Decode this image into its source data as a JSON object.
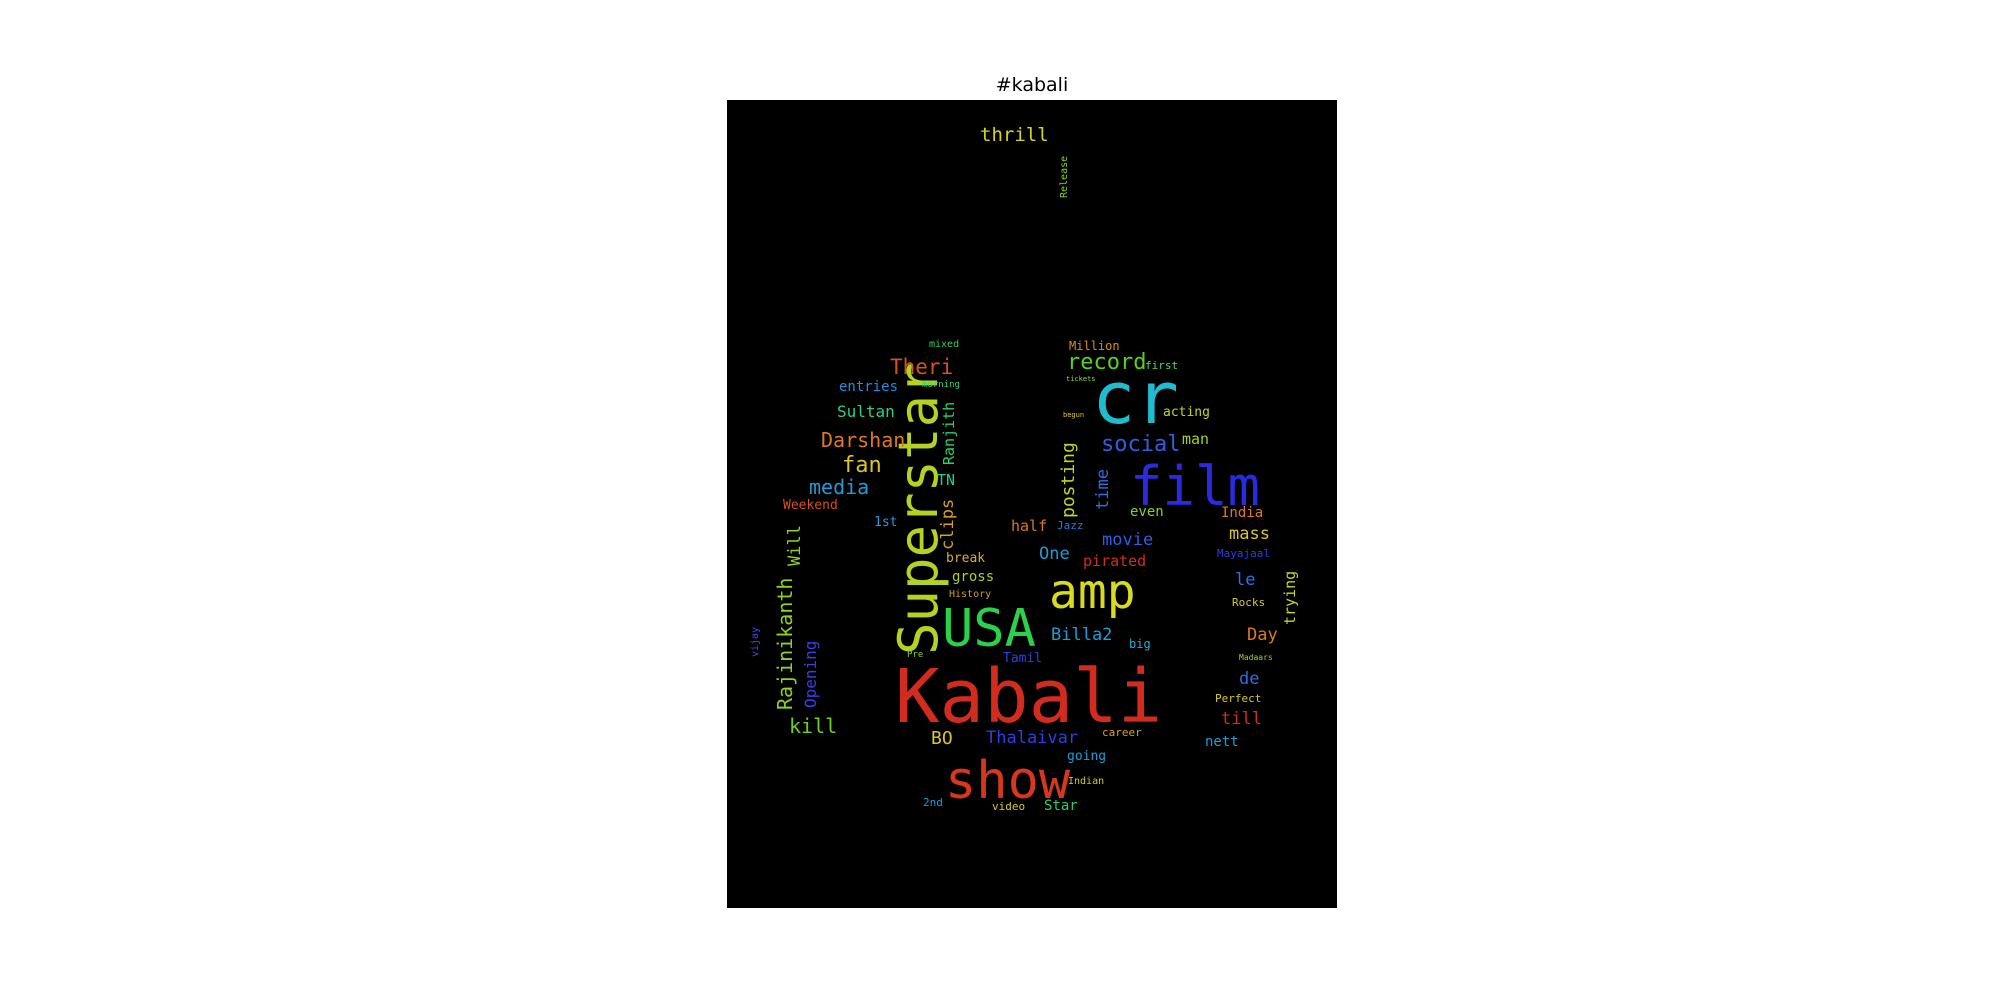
{
  "title": "#kabali",
  "words": [
    {
      "text": "Kabali",
      "color": "#d22c1f"
    },
    {
      "text": "show",
      "color": "#d7381c"
    },
    {
      "text": "Superstar",
      "color": "#b4d21f"
    },
    {
      "text": "cr",
      "color": "#1fbcd0"
    },
    {
      "text": "film",
      "color": "#2a2ae0"
    },
    {
      "text": "amp",
      "color": "#d8dc1f"
    },
    {
      "text": "USA",
      "color": "#2ad24c"
    },
    {
      "text": "record",
      "color": "#57d01f"
    },
    {
      "text": "social",
      "color": "#2e5ee6"
    },
    {
      "text": "thrill",
      "color": "#d6d21f"
    },
    {
      "text": "Theri",
      "color": "#d8501c"
    },
    {
      "text": "Darshan",
      "color": "#e0781f"
    },
    {
      "text": "media",
      "color": "#1f9cd8"
    },
    {
      "text": "fan",
      "color": "#d8c81f"
    },
    {
      "text": "Sultan",
      "color": "#2ad08a"
    },
    {
      "text": "entries",
      "color": "#1f8ee0"
    },
    {
      "text": "Rajinikanth",
      "color": "#8cd21f"
    },
    {
      "text": "Will",
      "color": "#8cd21f"
    },
    {
      "text": "Opening",
      "color": "#3a3ee6"
    },
    {
      "text": "kill",
      "color": "#6ad01f"
    },
    {
      "text": "Ranjith",
      "color": "#2ad06a"
    },
    {
      "text": "TN",
      "color": "#1fd090"
    },
    {
      "text": "clips",
      "color": "#d8a01f"
    },
    {
      "text": "posting",
      "color": "#c4d41f"
    },
    {
      "text": "time",
      "color": "#2e6ee6"
    },
    {
      "text": "man",
      "color": "#a0d21f"
    },
    {
      "text": "acting",
      "color": "#c8d41f"
    },
    {
      "text": "first",
      "color": "#5ad26a"
    },
    {
      "text": "Million",
      "color": "#e08a1f"
    },
    {
      "text": "mixed",
      "color": "#2ad06a"
    },
    {
      "text": "morning",
      "color": "#2ad07a"
    },
    {
      "text": "Weekend",
      "color": "#d8501c"
    },
    {
      "text": "1st",
      "color": "#1f9cd8"
    },
    {
      "text": "half",
      "color": "#d8781f"
    },
    {
      "text": "Jazz",
      "color": "#1f7ee0"
    },
    {
      "text": "One",
      "color": "#1f9cd8"
    },
    {
      "text": "movie",
      "color": "#2e5ee6"
    },
    {
      "text": "pirated",
      "color": "#d22c1f"
    },
    {
      "text": "break",
      "color": "#d8b01f"
    },
    {
      "text": "gross",
      "color": "#a8d21f"
    },
    {
      "text": "History",
      "color": "#c8a01f"
    },
    {
      "text": "even",
      "color": "#8cd21f"
    },
    {
      "text": "India",
      "color": "#e0781f"
    },
    {
      "text": "mass",
      "color": "#d8c81f"
    },
    {
      "text": "Mayajaal",
      "color": "#2e3ee6"
    },
    {
      "text": "le",
      "color": "#2e6ee6"
    },
    {
      "text": "trying",
      "color": "#c8d41f"
    },
    {
      "text": "Rocks",
      "color": "#d8c81f"
    },
    {
      "text": "Day",
      "color": "#e0781f"
    },
    {
      "text": "Billa2",
      "color": "#1f9cd8"
    },
    {
      "text": "big",
      "color": "#1fb0d8"
    },
    {
      "text": "Tamil",
      "color": "#2e3ee6"
    },
    {
      "text": "Pre",
      "color": "#8cd21f"
    },
    {
      "text": "de",
      "color": "#2e6ee6"
    },
    {
      "text": "Madaars",
      "color": "#a0d21f"
    },
    {
      "text": "till",
      "color": "#d22c1f"
    },
    {
      "text": "Perfect",
      "color": "#d8c81f"
    },
    {
      "text": "nett",
      "color": "#1f9cd8"
    },
    {
      "text": "BO",
      "color": "#d8c81f"
    },
    {
      "text": "Thalaivar",
      "color": "#2e3ee6"
    },
    {
      "text": "career",
      "color": "#d8a01f"
    },
    {
      "text": "going",
      "color": "#1f9cd8"
    },
    {
      "text": "Indian",
      "color": "#d8c81f"
    },
    {
      "text": "2nd",
      "color": "#1f9cd8"
    },
    {
      "text": "video",
      "color": "#d8c81f"
    },
    {
      "text": "Star",
      "color": "#2ad06a"
    },
    {
      "text": "vijay",
      "color": "#3a4ee6"
    },
    {
      "text": "Release",
      "color": "#8cd21f"
    },
    {
      "text": "tickets",
      "color": "#a0d21f"
    },
    {
      "text": "begun",
      "color": "#d8c81f"
    }
  ]
}
